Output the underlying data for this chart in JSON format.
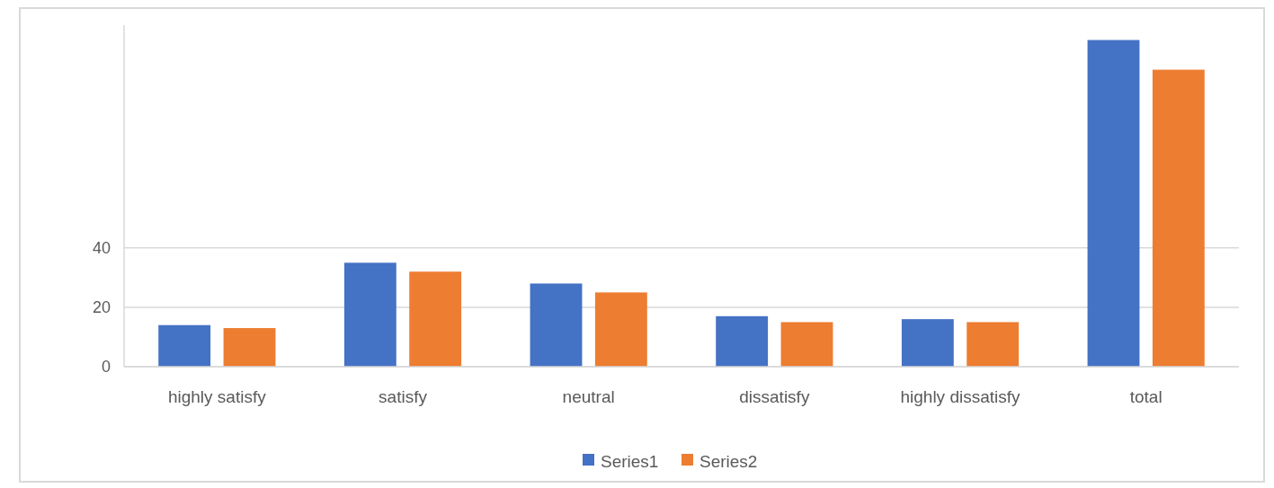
{
  "chart_data": {
    "type": "bar",
    "categories": [
      "highly satisfy",
      "satisfy",
      "neutral",
      "dissatisfy",
      "highly dissatisfy",
      "total"
    ],
    "series": [
      {
        "name": "Series1",
        "color": "#4472c4",
        "values": [
          14,
          35,
          28,
          17,
          16,
          110
        ]
      },
      {
        "name": "Series2",
        "color": "#ed7d31",
        "values": [
          13,
          32,
          25,
          15,
          15,
          100
        ]
      }
    ],
    "ylim": [
      0,
      115
    ],
    "yticks": [
      0,
      20,
      40
    ],
    "grid": "y",
    "legend": "bottom"
  }
}
